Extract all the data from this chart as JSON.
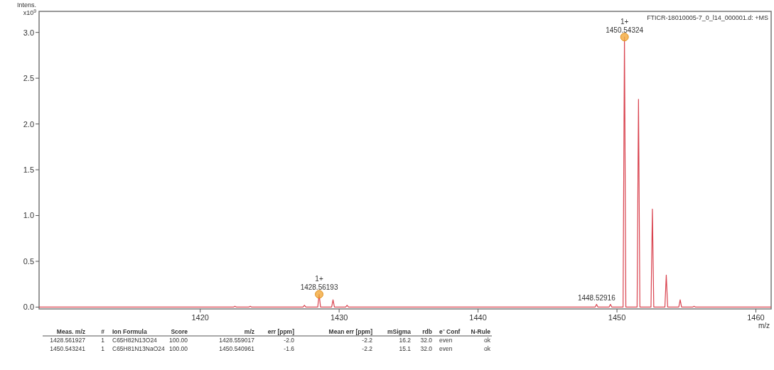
{
  "chart_data": {
    "type": "line",
    "xlabel": "m/z",
    "ylabel": "Intens.\nx10$^{9}$",
    "xlim": [
      1408.4,
      1461.1
    ],
    "ylim": [
      -0.02,
      3.23
    ],
    "xticks": [
      1420,
      1430,
      1440,
      1450,
      1460
    ],
    "yticks": [
      {
        "value": 0,
        "label": "0.0"
      },
      {
        "value": 0.5,
        "label": "0.5"
      },
      {
        "value": 1,
        "label": "1.0"
      },
      {
        "value": 1.5,
        "label": "1.5"
      },
      {
        "value": 2,
        "label": "2.0"
      },
      {
        "value": 2.5,
        "label": "2.5"
      },
      {
        "value": 3,
        "label": "3.0"
      }
    ],
    "grid": false,
    "line_style": "solid",
    "marker": "none",
    "series": [
      {
        "color": "#d9434f",
        "x": [
          1408.4,
          1422.4,
          1422.5,
          1422.6,
          1423.5,
          1423.6,
          1423.7,
          1427.4,
          1427.5,
          1427.6,
          1428.46,
          1428.56,
          1428.66,
          1429.46,
          1429.56,
          1429.66,
          1430.47,
          1430.57,
          1430.67,
          1448.43,
          1448.53,
          1448.63,
          1449.43,
          1449.53,
          1449.63,
          1450.44,
          1450.54,
          1450.64,
          1451.45,
          1451.55,
          1451.65,
          1452.45,
          1452.55,
          1452.65,
          1453.45,
          1453.55,
          1453.65,
          1454.45,
          1454.55,
          1454.65,
          1455.45,
          1455.55,
          1455.65,
          1461.1
        ],
        "values": [
          0,
          0,
          0.01,
          0,
          0,
          0.01,
          0,
          0,
          0.02,
          0,
          0,
          0.14,
          0,
          0,
          0.08,
          0,
          0,
          0.02,
          0,
          0,
          0.03,
          0,
          0,
          0.03,
          0,
          0,
          2.95,
          0,
          0,
          2.27,
          0,
          0,
          1.07,
          0,
          0,
          0.35,
          0,
          0,
          0.08,
          0,
          0,
          0.01,
          0,
          0
        ]
      },
      {
        "type": "scatter",
        "marker": "circle",
        "color": "#f2a93b",
        "x": [
          1428.56193,
          1450.54324
        ],
        "values": [
          0.14,
          2.95
        ]
      }
    ],
    "annotations": [
      {
        "text": "1+\n1450.54324",
        "x": 1450.54324,
        "y": 2.95
      },
      {
        "text": "1+\n1428.56193",
        "x": 1428.56193,
        "y": 0.14
      },
      {
        "text": "1448.52916",
        "x": 1448.52916,
        "y": 0.03
      },
      "FTICR-18010005-7_0_l14_000001.d: +MS",
      "Meas. m/z\t#\tIon Formula\tScore\tm/z\terr [ppm]\tMean err [ppm]\tmSigma\trdb\te⁻ Conf\tN-Rule",
      "1428.561927\t1\tC65H82N13O24\t100.00\t1428.559017\t-2.0\t-2.2\t16.2\t32.0\teven\tok",
      "1450.543241\t1\tC65H81N13NaO24\t100.00\t1450.540961\t-1.6\t-2.2\t15.1\t32.0\teven\tok"
    ]
  }
}
